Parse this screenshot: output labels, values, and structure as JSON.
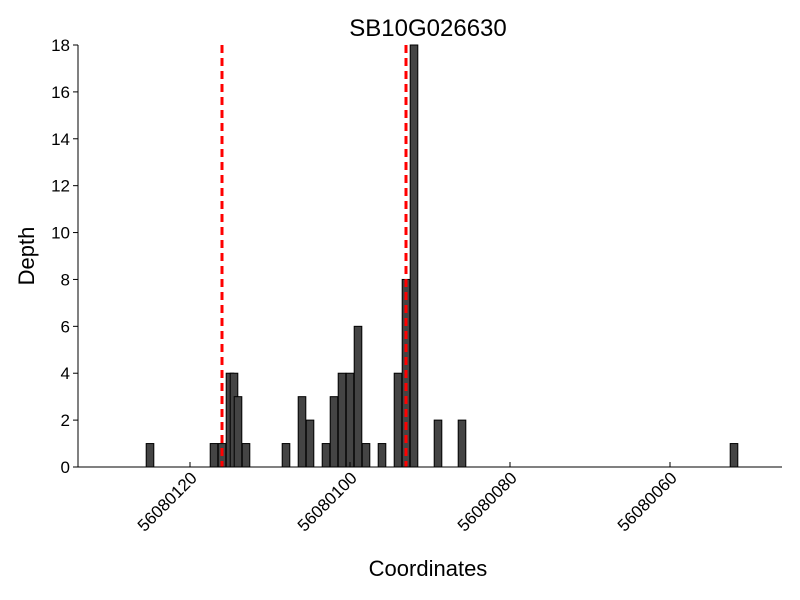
{
  "chart_data": {
    "type": "bar",
    "title": "SB10G026630",
    "xlabel": "Coordinates",
    "ylabel": "Depth",
    "x_axis_reversed": true,
    "xlim": [
      56080134,
      56080046
    ],
    "ylim": [
      0,
      18
    ],
    "y_ticks": [
      0,
      2,
      4,
      6,
      8,
      10,
      12,
      14,
      16,
      18
    ],
    "x_ticks": [
      56080120,
      56080100,
      56080080,
      56080060
    ],
    "x_tick_labels": [
      "56080120",
      "56080100",
      "56080080",
      "56080060"
    ],
    "grid": false,
    "bar_color": "#444444",
    "reference_line_color": "#ff0000",
    "reference_lines": [
      56080116,
      56080093
    ],
    "bars": [
      {
        "x": 56080125,
        "y": 1
      },
      {
        "x": 56080117,
        "y": 1
      },
      {
        "x": 56080116,
        "y": 1
      },
      {
        "x": 56080115,
        "y": 4
      },
      {
        "x": 56080115,
        "y": 4
      },
      {
        "x": 56080114,
        "y": 3
      },
      {
        "x": 56080113,
        "y": 1
      },
      {
        "x": 56080108,
        "y": 1
      },
      {
        "x": 56080106,
        "y": 3
      },
      {
        "x": 56080105,
        "y": 2
      },
      {
        "x": 56080103,
        "y": 1
      },
      {
        "x": 56080102,
        "y": 3
      },
      {
        "x": 56080101,
        "y": 4
      },
      {
        "x": 56080100,
        "y": 4
      },
      {
        "x": 56080099,
        "y": 6
      },
      {
        "x": 56080098,
        "y": 1
      },
      {
        "x": 56080096,
        "y": 1
      },
      {
        "x": 56080094,
        "y": 4
      },
      {
        "x": 56080093,
        "y": 8
      },
      {
        "x": 56080092,
        "y": 18
      },
      {
        "x": 56080089,
        "y": 2
      },
      {
        "x": 56080086,
        "y": 2
      },
      {
        "x": 56080052,
        "y": 1
      }
    ]
  }
}
